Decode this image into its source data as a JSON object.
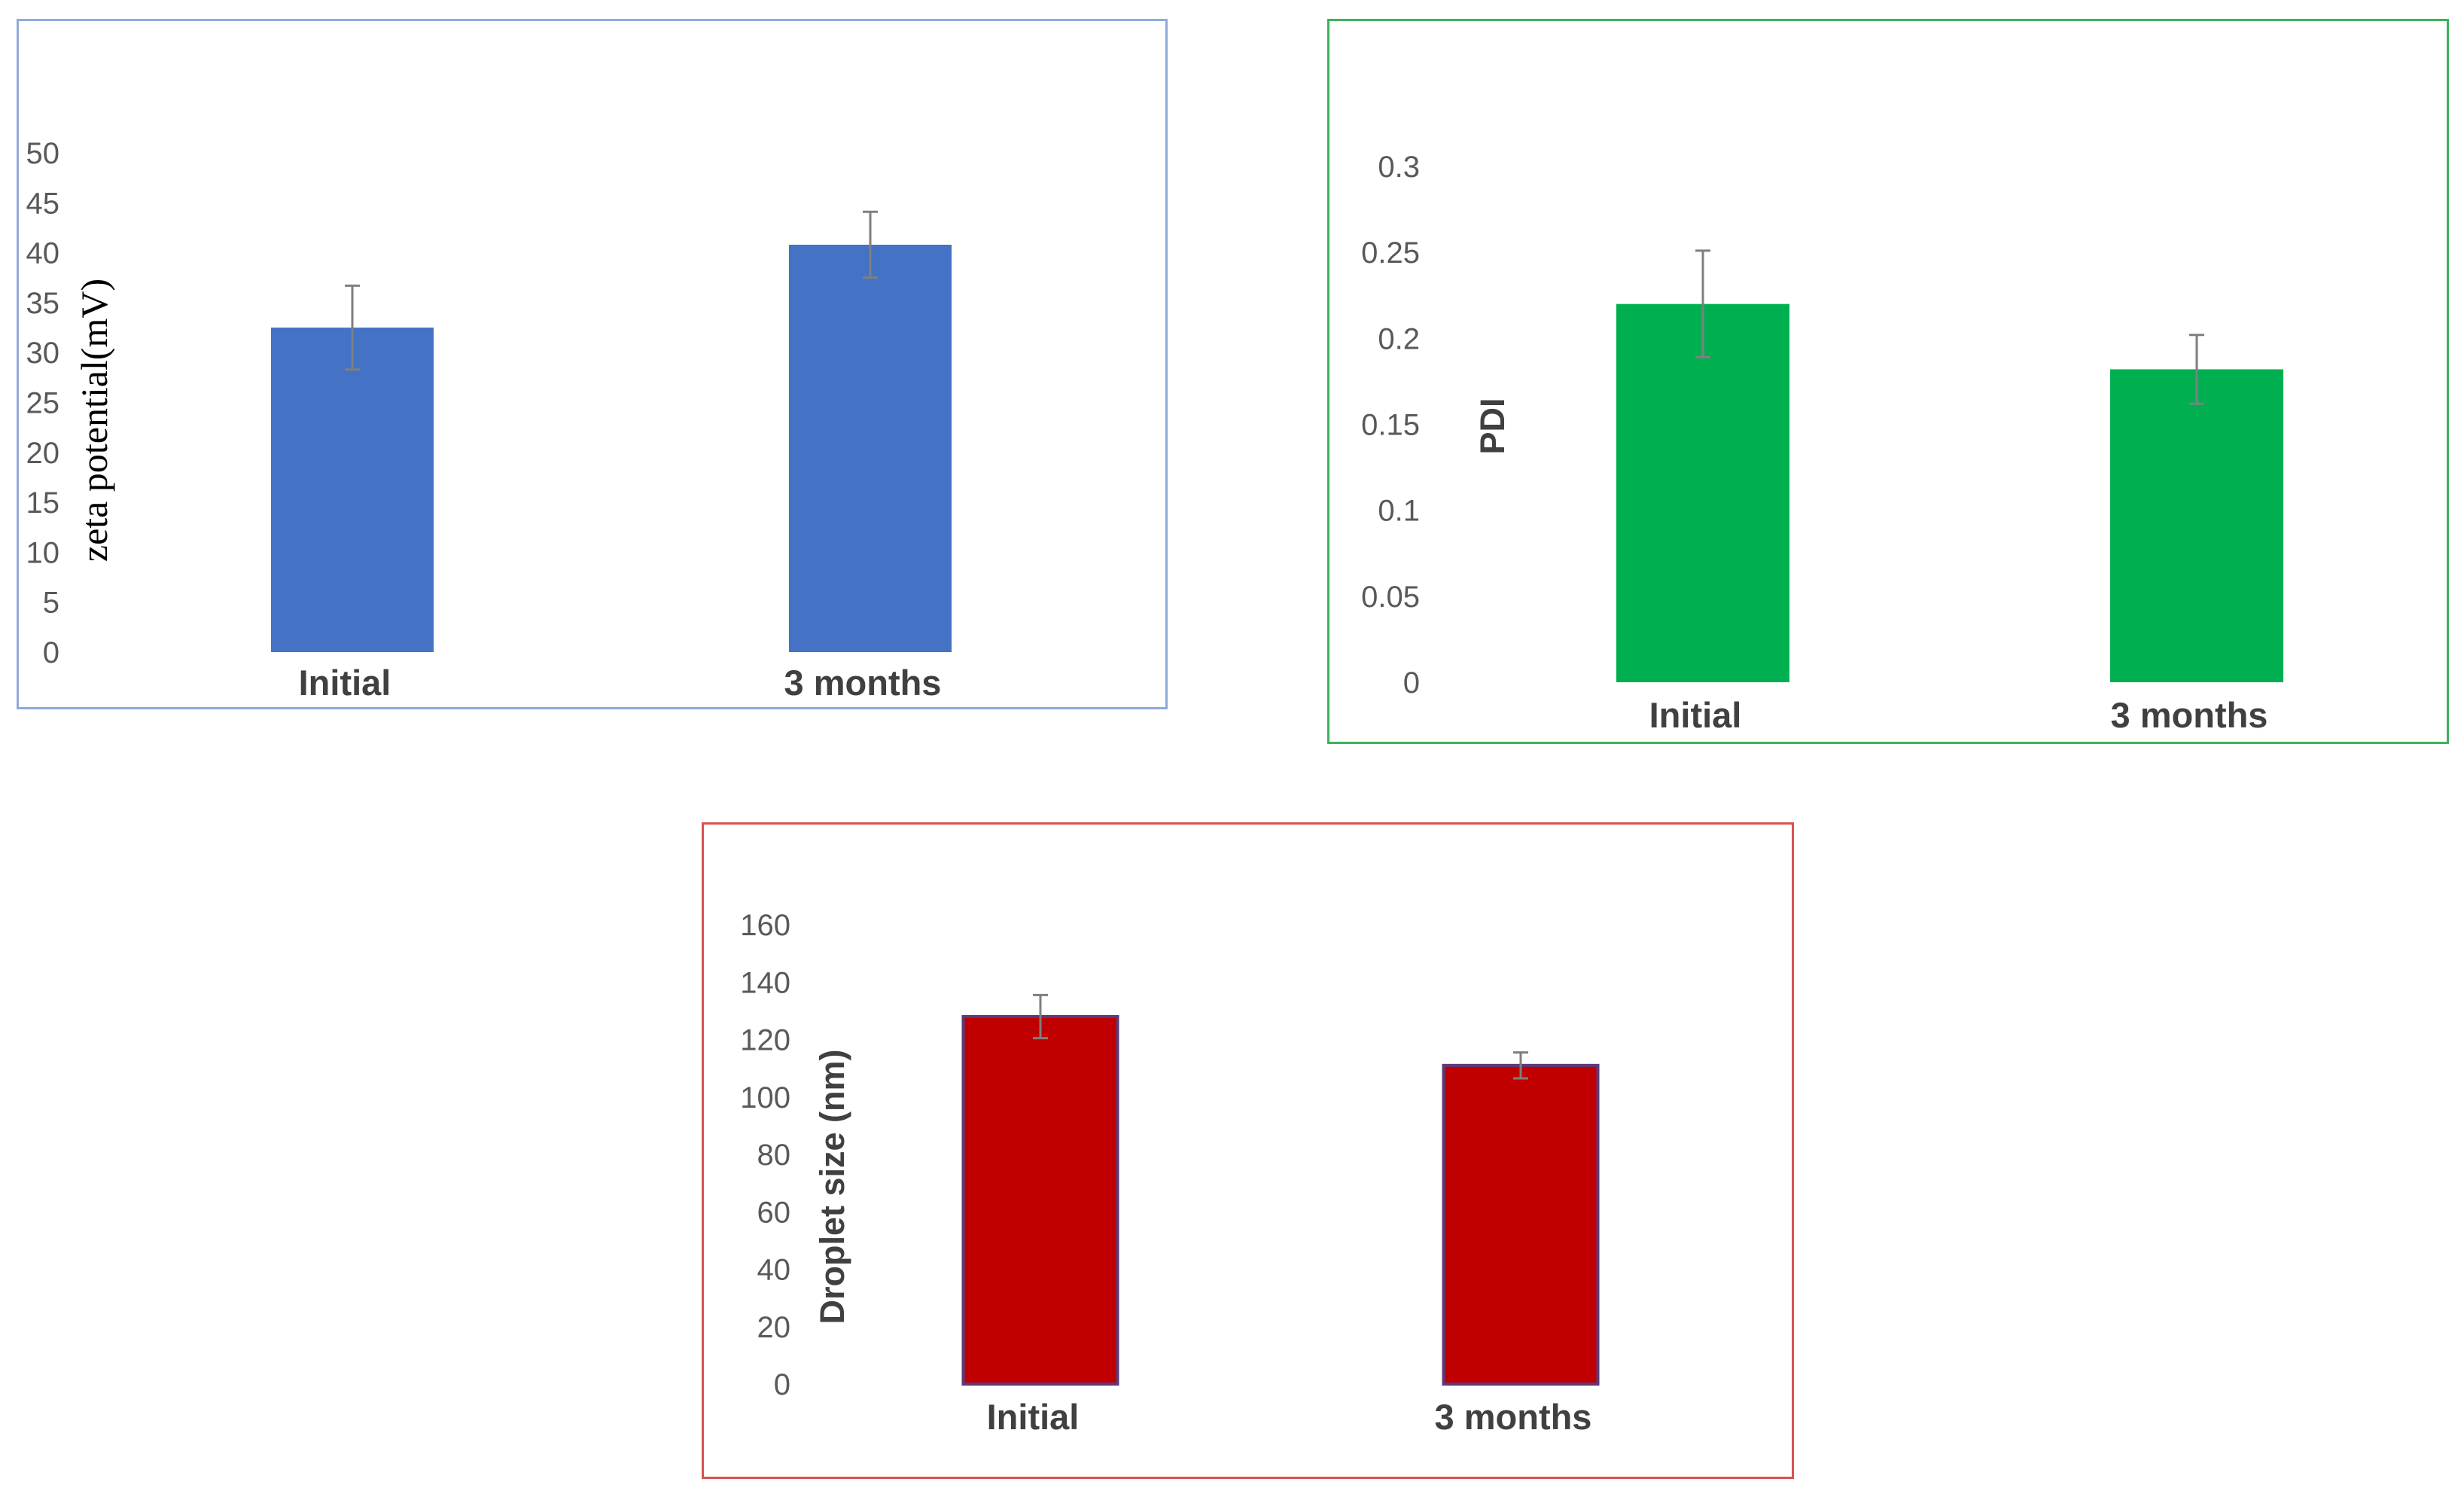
{
  "chart_data": [
    {
      "type": "bar",
      "title": "",
      "categories": [
        "Initial",
        "3 months"
      ],
      "values": [
        32.5,
        40.8
      ],
      "error": [
        4.2,
        3.3
      ],
      "ylabel": "zeta potential(mV)",
      "ylim": [
        0,
        50
      ],
      "yticks": [
        "0",
        "5",
        "10",
        "15",
        "20",
        "25",
        "30",
        "35",
        "40",
        "45",
        "50"
      ],
      "grid": false,
      "color": "#4472c4",
      "border_color": "#8faadc"
    },
    {
      "type": "bar",
      "title": "",
      "categories": [
        "Initial",
        "3 months"
      ],
      "values": [
        0.22,
        0.182
      ],
      "error": [
        0.031,
        0.02
      ],
      "ylabel": "PDI",
      "ylim": [
        0,
        0.3
      ],
      "yticks": [
        "0",
        "0.05",
        "0.1",
        "0.15",
        "0.2",
        "0.25",
        "0.3"
      ],
      "grid": false,
      "color": "#00b050",
      "border_color": "#3cb35c"
    },
    {
      "type": "bar",
      "title": "",
      "categories": [
        "Initial",
        "3 months"
      ],
      "values": [
        128,
        111
      ],
      "error": [
        7.5,
        4.5
      ],
      "ylabel": "Droplet size (nm)",
      "ylim": [
        0,
        160
      ],
      "yticks": [
        "0",
        "20",
        "40",
        "60",
        "80",
        "100",
        "120",
        "140",
        "160"
      ],
      "grid": false,
      "color": "#c00000",
      "bar_edge_color": "#5b3a78",
      "border_color": "#d9534f"
    }
  ]
}
